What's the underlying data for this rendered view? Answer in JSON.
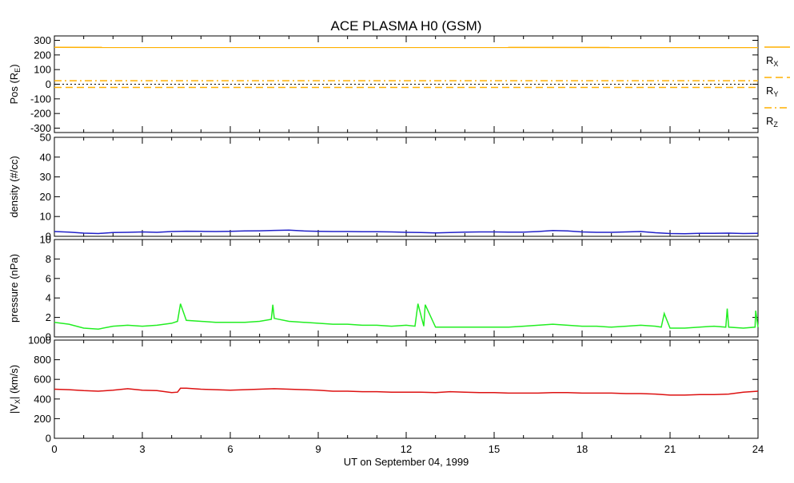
{
  "chart_data": {
    "type": "line",
    "title": "ACE PLASMA H0 (GSM)",
    "xlabel": "UT on September 04, 1999",
    "xlim": [
      0,
      24
    ],
    "xticks": [
      0,
      3,
      6,
      9,
      12,
      15,
      18,
      21,
      24
    ],
    "xtick_labels": [
      "0",
      "3",
      "6",
      "9",
      "12",
      "15",
      "18",
      "21",
      "24"
    ],
    "panels": [
      {
        "id": "pos",
        "ylabel": "Pos (RE)",
        "ylabel_main": "Pos (R",
        "ylabel_sub": "E",
        "ylabel_end": ")",
        "ylim": [
          -330,
          330
        ],
        "yticks": [
          -300,
          -200,
          -100,
          0,
          100,
          200,
          300
        ],
        "ytick_labels": [
          "-300",
          "-200",
          "-100",
          "0",
          "100",
          "200",
          "300"
        ],
        "zero_line": true,
        "series": [
          {
            "name": "RX",
            "name_main": "R",
            "name_sub": "X",
            "color": "#ffb000",
            "style": "solid",
            "x": [
              0,
              24
            ],
            "y": [
              252,
              251
            ]
          },
          {
            "name": "RY",
            "name_main": "R",
            "name_sub": "Y",
            "color": "#ffb000",
            "style": "dashed",
            "x": [
              0,
              24
            ],
            "y": [
              -22,
              -22
            ]
          },
          {
            "name": "RZ",
            "name_main": "R",
            "name_sub": "Z",
            "color": "#ffb000",
            "style": "dashdot",
            "x": [
              0,
              24
            ],
            "y": [
              24,
              24
            ]
          }
        ]
      },
      {
        "id": "density",
        "ylabel": "density (#/cc)",
        "ylim": [
          0,
          50
        ],
        "yticks": [
          0,
          10,
          20,
          30,
          40,
          50
        ],
        "ytick_labels": [
          "0",
          "10",
          "20",
          "30",
          "40",
          "50"
        ],
        "series": [
          {
            "name": "density",
            "color": "#2020c8",
            "x": [
              0,
              0.5,
              1,
              1.5,
              2,
              2.5,
              3,
              3.5,
              4,
              4.5,
              5,
              5.5,
              6,
              6.5,
              7,
              7.5,
              8,
              8.5,
              9,
              9.5,
              10,
              10.5,
              11,
              11.5,
              12,
              12.5,
              13,
              13.5,
              14,
              14.5,
              15,
              15.5,
              16,
              16.5,
              17,
              17.5,
              18,
              18.5,
              19,
              19.5,
              20,
              20.5,
              21,
              21.5,
              22,
              22.5,
              23,
              23.5,
              24
            ],
            "y": [
              2.4,
              2.1,
              1.6,
              1.4,
              1.9,
              2.0,
              2.2,
              2.0,
              2.4,
              2.6,
              2.5,
              2.4,
              2.5,
              2.7,
              2.8,
              3.0,
              3.1,
              2.7,
              2.5,
              2.4,
              2.4,
              2.3,
              2.3,
              2.2,
              2.0,
              1.9,
              1.7,
              1.9,
              2.1,
              2.2,
              2.2,
              2.1,
              2.1,
              2.4,
              2.9,
              2.7,
              2.2,
              2.0,
              2.0,
              2.2,
              2.4,
              1.8,
              1.4,
              1.3,
              1.5,
              1.5,
              1.6,
              1.4,
              1.5
            ]
          }
        ]
      },
      {
        "id": "pressure",
        "ylabel": "pressure (nPa)",
        "ylim": [
          0,
          10
        ],
        "yticks": [
          0,
          2,
          4,
          6,
          8,
          10
        ],
        "ytick_labels": [
          "0",
          "2",
          "4",
          "6",
          "8",
          "10"
        ],
        "series": [
          {
            "name": "pressure",
            "color": "#22ee22",
            "x": [
              0,
              0.5,
              1,
              1.5,
              2,
              2.5,
              3,
              3.5,
              4,
              4.2,
              4.3,
              4.5,
              5,
              5.5,
              6,
              6.5,
              7,
              7.4,
              7.45,
              7.5,
              8,
              8.5,
              9,
              9.5,
              10,
              10.5,
              11,
              11.5,
              12,
              12.3,
              12.4,
              12.6,
              12.65,
              13,
              13.5,
              14,
              14.5,
              15,
              15.5,
              16,
              16.5,
              17,
              17.5,
              18,
              18.5,
              19,
              19.5,
              20,
              20.5,
              20.7,
              20.8,
              21,
              21.5,
              22,
              22.5,
              22.9,
              22.95,
              23,
              23.5,
              23.9,
              23.92,
              24
            ],
            "y": [
              1.5,
              1.3,
              0.9,
              0.8,
              1.1,
              1.2,
              1.1,
              1.2,
              1.4,
              1.6,
              3.4,
              1.7,
              1.6,
              1.5,
              1.5,
              1.5,
              1.6,
              1.8,
              3.3,
              1.9,
              1.6,
              1.5,
              1.4,
              1.3,
              1.3,
              1.2,
              1.2,
              1.1,
              1.2,
              1.1,
              3.4,
              1.1,
              3.3,
              1.0,
              1.0,
              1.0,
              1.0,
              1.0,
              1.0,
              1.1,
              1.2,
              1.3,
              1.2,
              1.1,
              1.1,
              1.0,
              1.1,
              1.2,
              1.1,
              1.0,
              2.4,
              0.9,
              0.9,
              1.0,
              1.1,
              1.0,
              2.9,
              1.0,
              0.9,
              1.0,
              2.7,
              1.0
            ]
          }
        ]
      },
      {
        "id": "vx",
        "ylabel": "|VX| (km/s)",
        "ylabel_main": "|V",
        "ylabel_sub": "X",
        "ylabel_end": "| (km/s)",
        "ylim": [
          0,
          1000
        ],
        "yticks": [
          0,
          200,
          400,
          600,
          800,
          1000
        ],
        "ytick_labels": [
          "0",
          "200",
          "400",
          "600",
          "800",
          "1000"
        ],
        "series": [
          {
            "name": "|Vx|",
            "color": "#dd1111",
            "x": [
              0,
              0.5,
              1,
              1.5,
              2,
              2.5,
              3,
              3.5,
              4,
              4.2,
              4.3,
              4.5,
              5,
              5.5,
              6,
              6.5,
              7,
              7.5,
              8,
              8.5,
              9,
              9.5,
              10,
              10.5,
              11,
              11.5,
              12,
              12.5,
              13,
              13.5,
              14,
              14.5,
              15,
              15.5,
              16,
              16.5,
              17,
              17.5,
              18,
              18.5,
              19,
              19.5,
              20,
              20.5,
              21,
              21.5,
              22,
              22.5,
              23,
              23.5,
              24
            ],
            "y": [
              500,
              495,
              485,
              480,
              490,
              505,
              490,
              485,
              465,
              470,
              510,
              510,
              500,
              495,
              490,
              495,
              500,
              505,
              500,
              495,
              490,
              480,
              480,
              475,
              475,
              470,
              470,
              470,
              465,
              475,
              470,
              465,
              465,
              460,
              460,
              460,
              465,
              465,
              460,
              460,
              460,
              455,
              455,
              450,
              440,
              440,
              445,
              445,
              450,
              470,
              480
            ]
          }
        ]
      }
    ]
  }
}
